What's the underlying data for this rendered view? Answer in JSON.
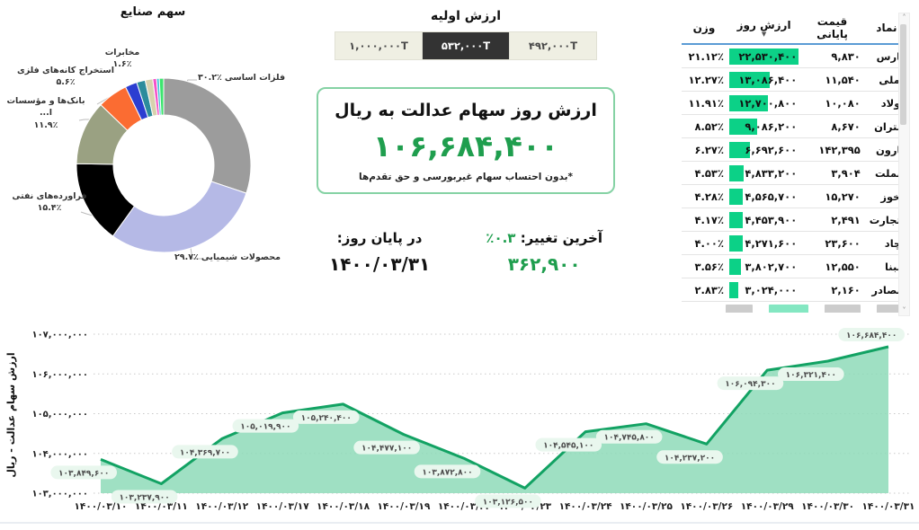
{
  "initial_value": {
    "title": "ارزش اولیه",
    "options": [
      {
        "label": "۱,۰۰۰,۰۰۰T",
        "selected": false
      },
      {
        "label": "۵۳۲,۰۰۰T",
        "selected": true
      },
      {
        "label": "۴۹۲,۰۰۰T",
        "selected": false
      }
    ]
  },
  "value_box": {
    "title": "ارزش روز سهام عدالت به ریال",
    "value": "۱۰۶,۶۸۴,۴۰۰",
    "note": "*بدون احتساب سهام غیربورسی و حق تقدم‌ها"
  },
  "change": {
    "label": "آخرین تغییر:",
    "percent": "۰.۳٪",
    "amount": "۳۶۲,۹۰۰",
    "eod_label": "در پایان روز:",
    "date": "۱۴۰۰/۰۳/۳۱"
  },
  "table": {
    "headers": {
      "symbol": "نماد",
      "close": "قیمت پایانی",
      "value": "ارزش روز",
      "weight": "وزن"
    },
    "sort_icon": "▼",
    "rows": [
      {
        "symbol": "فارس",
        "close": "۹,۸۳۰",
        "value": "۲۲,۵۳۰,۴۰۰",
        "weight": "۲۱.۱۲٪",
        "bar": 100
      },
      {
        "symbol": "فملی",
        "close": "۱۱,۵۴۰",
        "value": "۱۳,۰۸۶,۴۰۰",
        "weight": "۱۲.۲۷٪",
        "bar": 58
      },
      {
        "symbol": "فولاد",
        "close": "۱۰,۰۸۰",
        "value": "۱۲,۷۰۰,۸۰۰",
        "weight": "۱۱.۹۱٪",
        "bar": 56
      },
      {
        "symbol": "شتران",
        "close": "۸,۶۷۰",
        "value": "۹,۰۸۶,۲۰۰",
        "weight": "۸.۵۲٪",
        "bar": 40
      },
      {
        "symbol": "مارون",
        "close": "۱۴۲,۳۹۵",
        "value": "۶,۶۹۲,۶۰۰",
        "weight": "۶.۲۷٪",
        "bar": 30
      },
      {
        "symbol": "وبملت",
        "close": "۳,۹۰۴",
        "value": "۴,۸۳۳,۲۰۰",
        "weight": "۴.۵۳٪",
        "bar": 21
      },
      {
        "symbol": "فخوز",
        "close": "۱۵,۲۷۰",
        "value": "۴,۵۶۵,۷۰۰",
        "weight": "۴.۲۸٪",
        "bar": 20
      },
      {
        "symbol": "وتجارت",
        "close": "۲,۴۹۱",
        "value": "۴,۴۵۳,۹۰۰",
        "weight": "۴.۱۷٪",
        "bar": 20
      },
      {
        "symbol": "کچاد",
        "close": "۲۳,۶۰۰",
        "value": "۴,۲۷۱,۶۰۰",
        "weight": "۴.۰۰٪",
        "bar": 19
      },
      {
        "symbol": "شبنا",
        "close": "۱۲,۵۵۰",
        "value": "۳,۸۰۲,۷۰۰",
        "weight": "۳.۵۶٪",
        "bar": 17
      },
      {
        "symbol": "وبصادر",
        "close": "۲,۱۶۰",
        "value": "۳,۰۲۴,۰۰۰",
        "weight": "۲.۸۳٪",
        "bar": 13
      }
    ]
  },
  "scrollbar": {
    "up": "˄",
    "down": "˅"
  },
  "colors": {
    "accent_green": "#1f9e4e",
    "bar_green": "#0cd187",
    "line_green": "#12a263",
    "area_fill": "#8edbb8",
    "label_pill": "#e9f7ee",
    "header_blue": "#5b9bd5",
    "selected_dark": "#333333"
  },
  "chart_data": [
    {
      "type": "pie",
      "title": "سهم صنایع",
      "unit": "%",
      "slices": [
        {
          "name": "فلزات اساسی",
          "value": 30.2,
          "color": "#9c9c9c",
          "label": "۳۰.۲٪",
          "label_name": "فلزات اساسی"
        },
        {
          "name": "محصولات شیمیایی",
          "value": 29.7,
          "color": "#b5b9e6",
          "label": "۲۹.۷٪",
          "label_name": "محصولات شیمیایی"
        },
        {
          "name": "فراورده‌های نفتی",
          "value": 15.4,
          "color": "#000000",
          "label_lines": [
            "فراورده‌های نفتی",
            "۱۵.۴٪"
          ]
        },
        {
          "name": "بانک‌ها و مؤسسات ا...",
          "value": 11.9,
          "color": "#9aa182",
          "label_lines": [
            "بانک‌ها و مؤسسات ا...",
            "۱۱.۹٪"
          ]
        },
        {
          "name": "استخراج کانه‌های فلزی",
          "value": 5.6,
          "color": "#fb6c32",
          "label_lines": [
            "استخراج کانه‌های فلزی",
            "۵.۶٪"
          ]
        },
        {
          "name": "",
          "value": 2.2,
          "color": "#2b3ed1"
        },
        {
          "name": "مخابرات",
          "value": 1.6,
          "color": "#2c8c9c",
          "label_lines": [
            "مخابرات",
            "۱.۶٪"
          ]
        },
        {
          "name": "",
          "value": 1.4,
          "color": "#d7d2ae"
        },
        {
          "name": "",
          "value": 0.7,
          "color": "#f351c9"
        },
        {
          "name": "",
          "value": 0.5,
          "color": "#3fc6d8"
        },
        {
          "name": "",
          "value": 0.8,
          "color": "#3ce56e"
        }
      ]
    },
    {
      "type": "area",
      "ylabel": "ارزش سهام عدالت - ریال",
      "x": [
        "۱۴۰۰/۰۳/۱۰",
        "۱۴۰۰/۰۳/۱۱",
        "۱۴۰۰/۰۳/۱۲",
        "۱۴۰۰/۰۳/۱۷",
        "۱۴۰۰/۰۳/۱۸",
        "۱۴۰۰/۰۳/۱۹",
        "۱۴۰۰/۰۳/۲۲",
        "۱۴۰۰/۰۳/۲۳",
        "۱۴۰۰/۰۳/۲۴",
        "۱۴۰۰/۰۳/۲۵",
        "۱۴۰۰/۰۳/۲۶",
        "۱۴۰۰/۰۳/۲۹",
        "۱۴۰۰/۰۳/۳۰",
        "۱۴۰۰/۰۳/۳۱"
      ],
      "values": [
        103849600,
        103237900,
        104369700,
        105019900,
        105240400,
        104477100,
        103872800,
        103126500,
        104545100,
        104745800,
        104237200,
        106094300,
        106321400,
        106684400
      ],
      "value_labels": [
        "۱۰۳,۸۴۹,۶۰۰",
        "۱۰۳,۲۳۷,۹۰۰",
        "۱۰۴,۳۶۹,۷۰۰",
        "۱۰۵,۰۱۹,۹۰۰",
        "۱۰۵,۲۴۰,۴۰۰",
        "۱۰۴,۴۷۷,۱۰۰",
        "۱۰۳,۸۷۲,۸۰۰",
        "۱۰۳,۱۲۶,۵۰۰",
        "۱۰۴,۵۴۵,۱۰۰",
        "۱۰۴,۷۴۵,۸۰۰",
        "۱۰۴,۲۳۷,۲۰۰",
        "۱۰۶,۰۹۴,۳۰۰",
        "۱۰۶,۳۲۱,۴۰۰",
        "۱۰۶,۶۸۴,۴۰۰"
      ],
      "ylim": [
        103000000,
        107000000
      ],
      "ytick_labels": [
        "۱۰۳,۰۰۰,۰۰۰",
        "۱۰۴,۰۰۰,۰۰۰",
        "۱۰۵,۰۰۰,۰۰۰",
        "۱۰۶,۰۰۰,۰۰۰",
        "۱۰۷,۰۰۰,۰۰۰"
      ],
      "grid": "dotted-horizontal",
      "legend": "none"
    }
  ]
}
